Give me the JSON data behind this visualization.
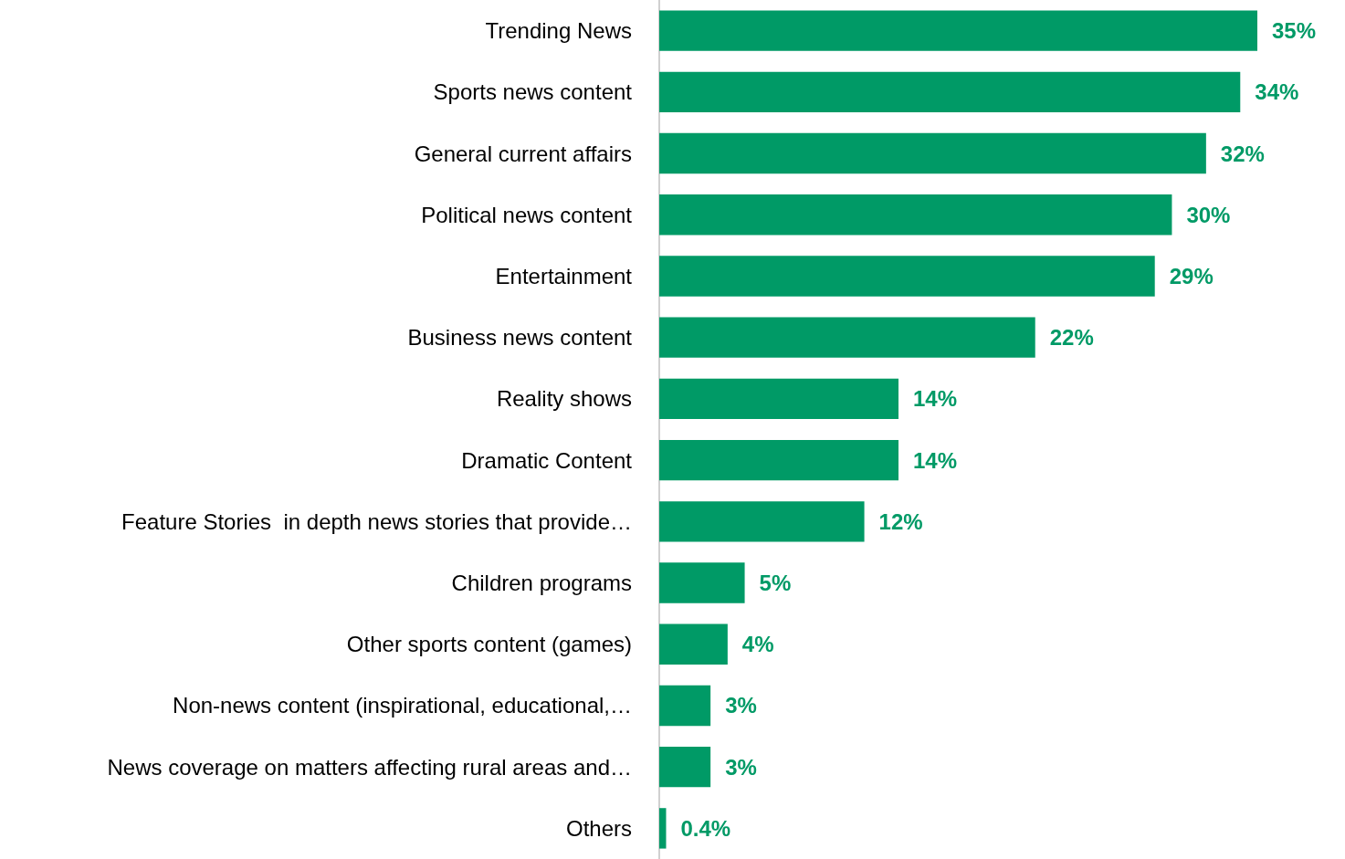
{
  "chart_data": {
    "type": "bar",
    "orientation": "horizontal",
    "categories": [
      "Trending News",
      "Sports news content",
      "General current affairs",
      "Political news content",
      "Entertainment",
      "Business news content",
      "Reality shows",
      "Dramatic Content",
      "Feature Stories  in depth news stories that provide…",
      "Children programs",
      "Other sports content (games)",
      "Non-news content (inspirational, educational,…",
      "News coverage on matters affecting rural areas and…",
      "Others"
    ],
    "values": [
      35,
      34,
      32,
      30,
      29,
      22,
      14,
      14,
      12,
      5,
      4,
      3,
      3,
      0.4
    ],
    "value_labels": [
      "35%",
      "34%",
      "32%",
      "30%",
      "29%",
      "22%",
      "14%",
      "14%",
      "12%",
      "5%",
      "4%",
      "3%",
      "3%",
      "0.4%"
    ],
    "color": "#009a66"
  }
}
